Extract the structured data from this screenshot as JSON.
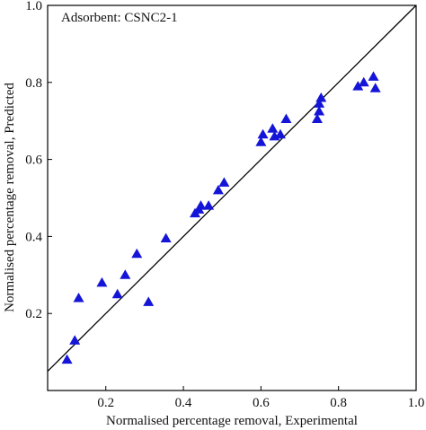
{
  "chart_data": {
    "type": "scatter",
    "title": "",
    "annotation": "Adsorbent: CSNC2-1",
    "xlabel": "Normalised percentage removal, Experimental",
    "ylabel": "Normalised percentage removal, Predicted",
    "xlim": [
      0.05,
      1.0
    ],
    "ylim": [
      0.0,
      1.0
    ],
    "xticks": [
      0.2,
      0.4,
      0.6,
      0.8,
      1.0
    ],
    "yticks": [
      0.2,
      0.4,
      0.6,
      0.8,
      1.0
    ],
    "xtick_labels": [
      "0.2",
      "0.4",
      "0.6",
      "0.8",
      "1.0"
    ],
    "ytick_labels": [
      "0.2",
      "0.4",
      "0.6",
      "0.8",
      "1.0"
    ],
    "grid": false,
    "marker": "triangle",
    "marker_color": "#1515d8",
    "reference_line": {
      "type": "y=x",
      "color": "#000000"
    },
    "series": [
      {
        "points": [
          {
            "x": 0.1,
            "y": 0.08
          },
          {
            "x": 0.12,
            "y": 0.13
          },
          {
            "x": 0.13,
            "y": 0.24
          },
          {
            "x": 0.19,
            "y": 0.28
          },
          {
            "x": 0.23,
            "y": 0.25
          },
          {
            "x": 0.25,
            "y": 0.3
          },
          {
            "x": 0.28,
            "y": 0.355
          },
          {
            "x": 0.31,
            "y": 0.23
          },
          {
            "x": 0.355,
            "y": 0.395
          },
          {
            "x": 0.43,
            "y": 0.46
          },
          {
            "x": 0.44,
            "y": 0.47
          },
          {
            "x": 0.445,
            "y": 0.48
          },
          {
            "x": 0.465,
            "y": 0.48
          },
          {
            "x": 0.49,
            "y": 0.52
          },
          {
            "x": 0.505,
            "y": 0.54
          },
          {
            "x": 0.6,
            "y": 0.645
          },
          {
            "x": 0.605,
            "y": 0.665
          },
          {
            "x": 0.63,
            "y": 0.68
          },
          {
            "x": 0.635,
            "y": 0.66
          },
          {
            "x": 0.65,
            "y": 0.665
          },
          {
            "x": 0.665,
            "y": 0.705
          },
          {
            "x": 0.745,
            "y": 0.705
          },
          {
            "x": 0.75,
            "y": 0.725
          },
          {
            "x": 0.75,
            "y": 0.745
          },
          {
            "x": 0.755,
            "y": 0.76
          },
          {
            "x": 0.85,
            "y": 0.79
          },
          {
            "x": 0.865,
            "y": 0.8
          },
          {
            "x": 0.89,
            "y": 0.815
          },
          {
            "x": 0.895,
            "y": 0.785
          }
        ]
      }
    ]
  }
}
